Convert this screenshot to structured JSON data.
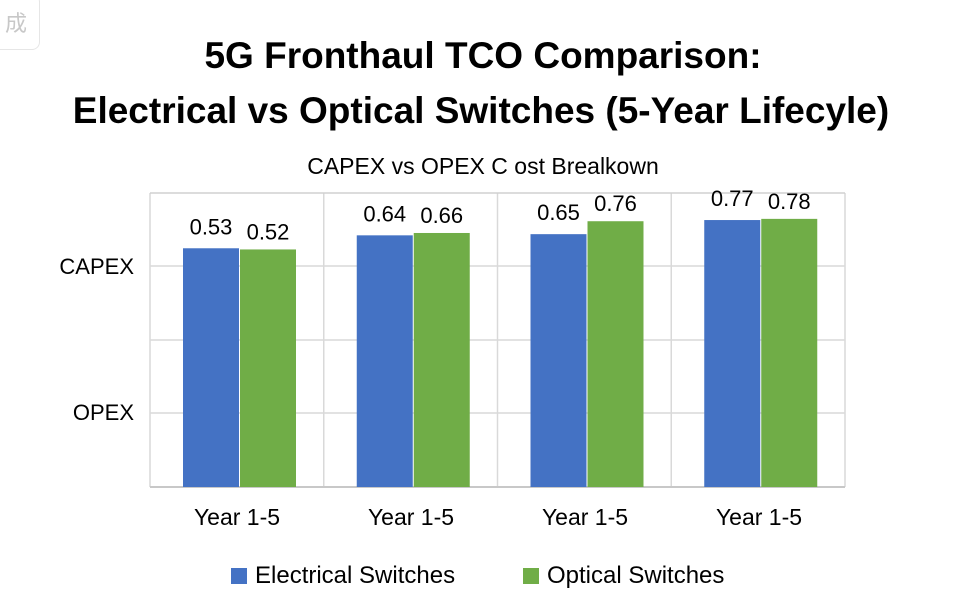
{
  "watermark": "成",
  "chart_data": {
    "type": "bar",
    "title_line1": "5G Fronthaul TCO Comparison:",
    "title_line2": "Electrical vs Optical Switches (5-Year Lifecyle)",
    "subtitle": "CAPEX vs OPEX C ost Brealkown",
    "y_category_labels": [
      "CAPEX",
      "OPEX"
    ],
    "categories": [
      "Year 1-5",
      "Year 1-5",
      "Year 1-5",
      "Year 1-5"
    ],
    "series": [
      {
        "name": "Electrical Switches",
        "color": "#4472c4",
        "values": [
          0.53,
          0.64,
          0.65,
          0.77
        ]
      },
      {
        "name": "Optical Switches",
        "color": "#70ad47",
        "values": [
          0.52,
          0.66,
          0.76,
          0.78
        ]
      }
    ],
    "grid": true,
    "legend": "bottom"
  }
}
